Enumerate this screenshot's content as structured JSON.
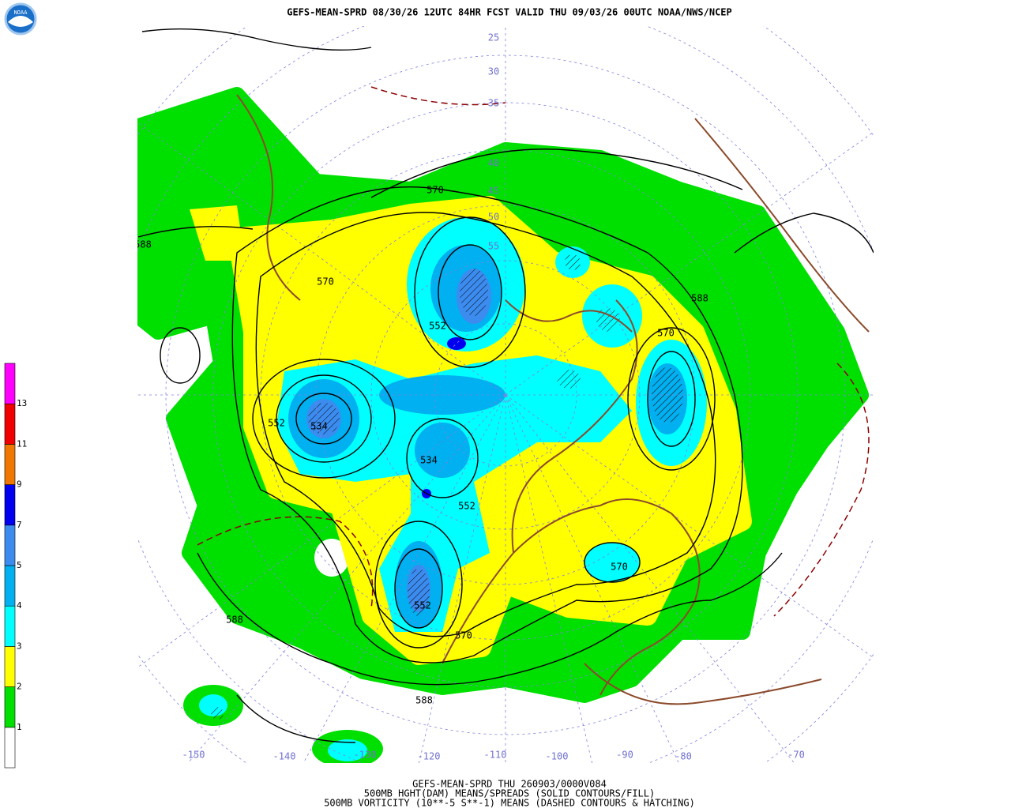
{
  "title": "GEFS-MEAN-SPRD 08/30/26 12UTC 84HR FCST VALID THU 09/03/26 00UTC NOAA/NWS/NCEP",
  "logo": "NOAA",
  "footer": [
    "GEFS-MEAN-SPRD THU 260903/0000V084",
    "500MB HGHT(DAM) MEANS/SPREADS (SOLID CONTOURS/FILL)",
    "500MB VORTICITY (10**-5 S**-1) MEANS (DASHED CONTOURS & HATCHING)"
  ],
  "colorbar": {
    "colors": [
      "#ffffff",
      "#00e000",
      "#ffff00",
      "#00ffff",
      "#00b0f0",
      "#3c8cf0",
      "#0000f0",
      "#f07800",
      "#f00000",
      "#ff00ff"
    ],
    "labels": [
      "1",
      "2",
      "3",
      "4",
      "5",
      "7",
      "9",
      "11",
      "13"
    ]
  },
  "longitude_labels": [
    "-150",
    "-140",
    "-130",
    "-120",
    "-110",
    "-100",
    "-90",
    "-80",
    "-70"
  ],
  "latitude_labels": [
    "25",
    "30",
    "35",
    "40",
    "45",
    "50",
    "55"
  ],
  "contour_labels": [
    "570",
    "588",
    "570",
    "552",
    "588",
    "570",
    "552",
    "534",
    "534",
    "552",
    "570",
    "552",
    "570",
    "588",
    "588"
  ]
}
